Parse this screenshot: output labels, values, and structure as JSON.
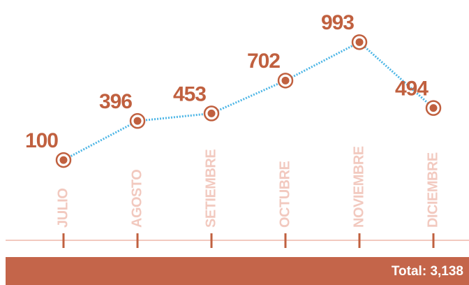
{
  "chart_data": {
    "type": "line",
    "categories": [
      "JULIO",
      "AGOSTO",
      "SETIEMBRE",
      "OCTUBRE",
      "NOVIEMBRE",
      "DICIEMBRE"
    ],
    "series": [
      {
        "color": "#4db6e6",
        "values": [
          100,
          396,
          453,
          702,
          993,
          494
        ]
      }
    ],
    "ylim": [
      0,
      1000
    ],
    "total_label": "Total: 3,138"
  }
}
